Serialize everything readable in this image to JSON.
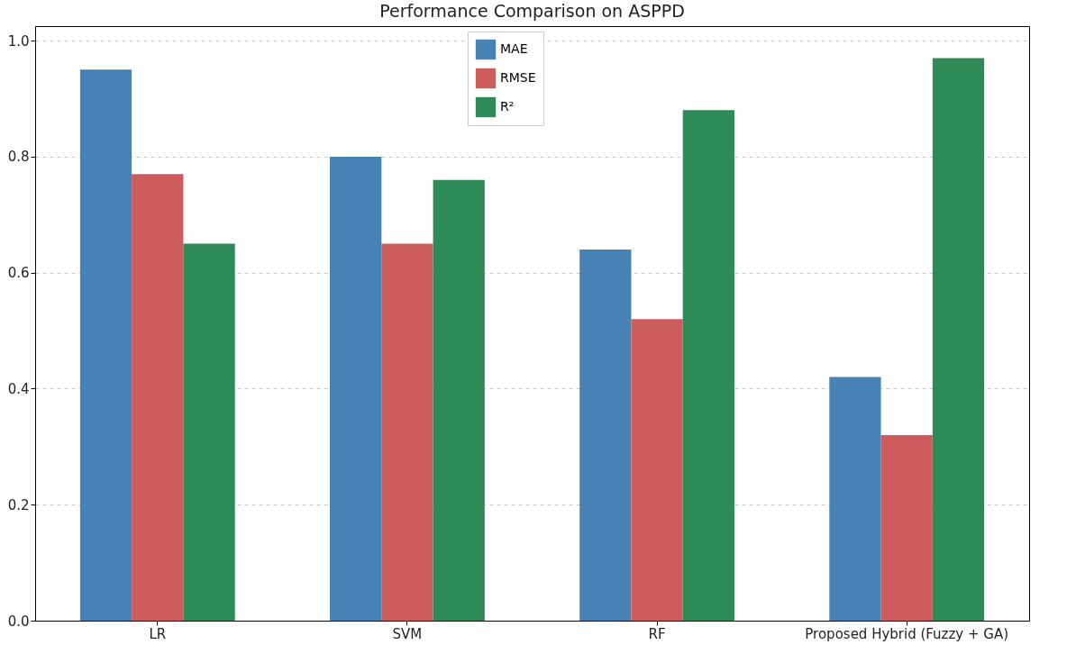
{
  "chart_data": {
    "type": "bar",
    "title": "Performance Comparison on ASPPD",
    "categories": [
      "LR",
      "SVM",
      "RF",
      "Proposed Hybrid (Fuzzy + GA)"
    ],
    "series": [
      {
        "name": "MAE",
        "color": "#4682b4",
        "values": [
          0.95,
          0.8,
          0.64,
          0.42
        ]
      },
      {
        "name": "RMSE",
        "color": "#cd5c5c",
        "values": [
          0.77,
          0.65,
          0.52,
          0.32
        ]
      },
      {
        "name": "R²",
        "color": "#2e8b57",
        "values": [
          0.65,
          0.76,
          0.88,
          0.97
        ]
      }
    ],
    "ylim": [
      0,
      1.025
    ],
    "yticks": [
      {
        "value": 0,
        "label": "0.0"
      },
      0.2,
      0.4,
      0.6,
      0.8,
      {
        "value": 1,
        "label": "1.0"
      }
    ],
    "grid": "y",
    "legend": "top"
  }
}
